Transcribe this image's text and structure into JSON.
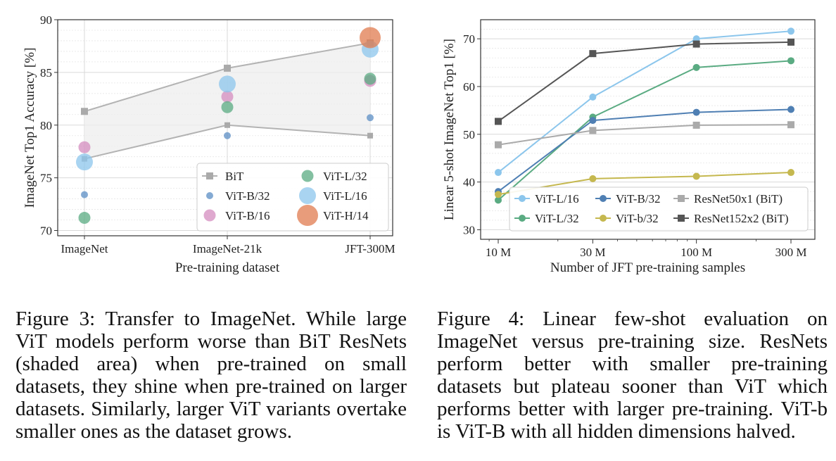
{
  "chart_data": [
    {
      "type": "scatter",
      "xlabel": "Pre-training dataset",
      "ylabel": "ImageNet Top1 Accuracy [%]",
      "categories": [
        "ImageNet",
        "ImageNet-21k",
        "JFT-300M"
      ],
      "ylim": [
        69.5,
        90
      ],
      "yticks": [
        70,
        75,
        80,
        85,
        90
      ],
      "grid": true,
      "legend_placement": "bottom-right",
      "shaded_band": {
        "description_series": "BiT",
        "upper": [
          81.3,
          85.4,
          87.8
        ],
        "lower": [
          76.8,
          80.0,
          79.0
        ]
      },
      "series": [
        {
          "name": "BiT",
          "marker": "square",
          "color": "#aaaaaa",
          "values": [
            81.3,
            85.4,
            87.8
          ],
          "extra_values": [
            76.8,
            80.0,
            79.0
          ]
        },
        {
          "name": "ViT-B/32",
          "marker": "circle",
          "size": "small",
          "color": "#5b8ec4",
          "values": [
            73.4,
            79.0,
            80.7
          ]
        },
        {
          "name": "ViT-B/16",
          "marker": "circle",
          "size": "medium",
          "color": "#d48cbf",
          "values": [
            77.9,
            82.7,
            84.2
          ]
        },
        {
          "name": "ViT-L/32",
          "marker": "circle",
          "size": "medium",
          "color": "#5aab82",
          "values": [
            71.2,
            81.7,
            84.4
          ]
        },
        {
          "name": "ViT-L/16",
          "marker": "circle",
          "size": "large",
          "color": "#8cc6ec",
          "values": [
            76.5,
            83.9,
            87.2
          ]
        },
        {
          "name": "ViT-H/14",
          "marker": "circle",
          "size": "xlarge",
          "color": "#e07b4f",
          "values": [
            null,
            null,
            88.3
          ]
        }
      ]
    },
    {
      "type": "line",
      "xlabel": "Number of JFT pre-training samples",
      "ylabel": "Linear 5-shot ImageNet Top1 [%]",
      "x": [
        10,
        30,
        100,
        300
      ],
      "xtick_labels": [
        "10 M",
        "30 M",
        "100 M",
        "300 M"
      ],
      "xscale": "log",
      "ylim": [
        28,
        74
      ],
      "yticks": [
        30,
        40,
        50,
        60,
        70
      ],
      "grid": true,
      "legend_placement": "bottom-right",
      "series": [
        {
          "name": "ViT-L/16",
          "marker": "circle",
          "color": "#8cc6ec",
          "values": [
            42.0,
            57.8,
            70.0,
            71.6
          ]
        },
        {
          "name": "ViT-L/32",
          "marker": "circle",
          "color": "#5aab82",
          "values": [
            36.2,
            53.6,
            64.0,
            65.4
          ]
        },
        {
          "name": "ViT-B/32",
          "marker": "circle",
          "color": "#4f7fb3",
          "values": [
            38.0,
            52.9,
            54.6,
            55.2
          ]
        },
        {
          "name": "ViT-b/32",
          "marker": "circle",
          "color": "#c5b84f",
          "values": [
            37.4,
            40.7,
            41.2,
            42.0
          ]
        },
        {
          "name": "ResNet50x1 (BiT)",
          "marker": "square",
          "color": "#aaaaaa",
          "values": [
            47.8,
            50.8,
            51.9,
            52.0
          ]
        },
        {
          "name": "ResNet152x2 (BiT)",
          "marker": "square",
          "color": "#555555",
          "values": [
            52.7,
            66.9,
            68.9,
            69.3
          ]
        }
      ]
    }
  ],
  "captions": {
    "fig3": "Figure 3: Transfer to ImageNet. While large ViT models perform worse than BiT ResNets (shaded area) when pre-trained on small datasets, they shine when pre-trained on larger datasets. Similarly, larger ViT variants overtake smaller ones as the dataset grows.",
    "fig4": "Figure 4: Linear few-shot evaluation on ImageNet versus pre-training size. ResNets perform better with smaller pre-training datasets but plateau sooner than ViT which performs better with larger pre-training. ViT-b is ViT-B with all hidden dimensions halved."
  }
}
